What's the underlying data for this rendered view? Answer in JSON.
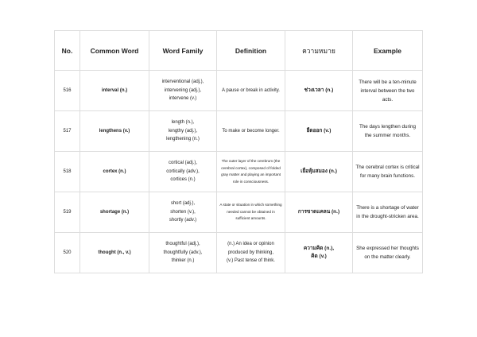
{
  "table": {
    "headers": [
      "No.",
      "Common Word",
      "Word Family",
      "Definition",
      "ความหมาย",
      "Example"
    ],
    "rows": [
      {
        "no": "516",
        "word": "interval (n.)",
        "family": "interventional (adj.),\nintervening (adj.),\nintervene (v.)",
        "definition": "A pause or break in activity.",
        "thai": "ช่วงเวลา (n.)",
        "example": "There will be a ten-minute interval between the two acts."
      },
      {
        "no": "517",
        "word": "lengthens (v.)",
        "family": "length (n.),\nlengthy (adj.),\nlengthening (n.)",
        "definition": "To make or become longer.",
        "thai": "ยืดออก (v.)",
        "example": "The days lengthen during the summer months."
      },
      {
        "no": "518",
        "word": "cortex (n.)",
        "family": "cortical (adj.),\ncortically (adv.),\ncortices (n.)",
        "definition": "The outer layer of the cerebrum (the cerebral cortex), composed of folded gray matter and playing an important role in consciousness.",
        "thai": "เยื่อหุ้มสมอง (n.)",
        "example": "The cerebral cortex is critical for many brain functions."
      },
      {
        "no": "519",
        "word": "shortage (n.)",
        "family": "short (adj.),\nshorten (v.),\nshortly (adv.)",
        "definition": "A state or situation in which something needed cannot be obtained in sufficient amounts.",
        "thai": "การขาดแคลน (n.)",
        "example": "There is a shortage of water in the drought-stricken area."
      },
      {
        "no": "520",
        "word": "thought (n., v.)",
        "family": "thoughtful (adj.),\nthoughtfully (adv.),\nthinker (n.)",
        "definition": "(n.) An idea or opinion produced by thinking,\n(v.) Past tense of think.",
        "thai": "ความคิด (n.),\nคิด (v.)",
        "example": "She expressed her thoughts on the matter clearly."
      }
    ]
  }
}
